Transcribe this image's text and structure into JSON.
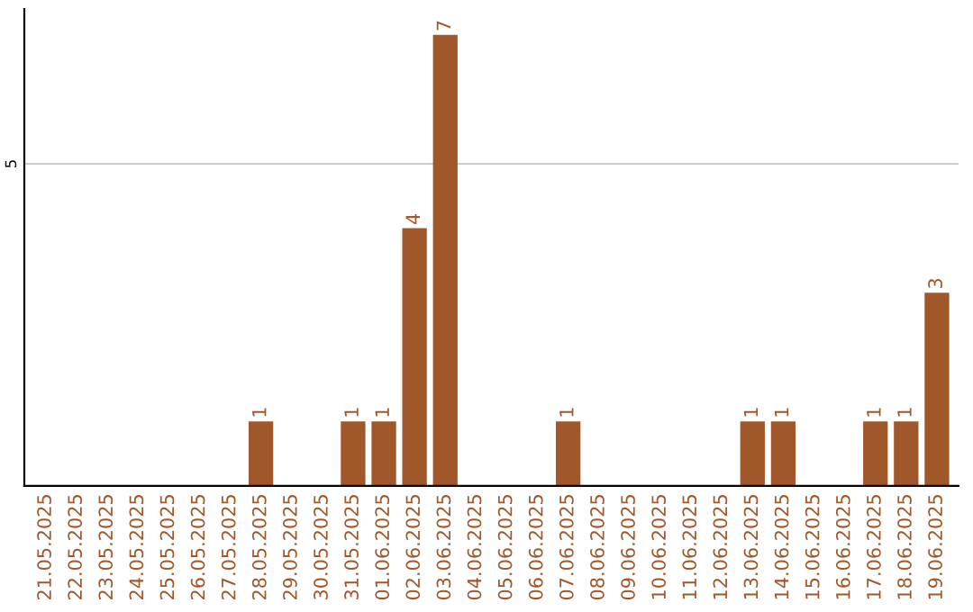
{
  "chart_data": {
    "type": "bar",
    "categories": [
      "21.05.2025",
      "22.05.2025",
      "23.05.2025",
      "24.05.2025",
      "25.05.2025",
      "26.05.2025",
      "27.05.2025",
      "28.05.2025",
      "29.05.2025",
      "30.05.2025",
      "31.05.2025",
      "01.06.2025",
      "02.06.2025",
      "03.06.2025",
      "04.06.2025",
      "05.06.2025",
      "06.06.2025",
      "07.06.2025",
      "08.06.2025",
      "09.06.2025",
      "10.06.2025",
      "11.06.2025",
      "12.06.2025",
      "13.06.2025",
      "14.06.2025",
      "15.06.2025",
      "16.06.2025",
      "17.06.2025",
      "18.06.2025",
      "19.06.2025"
    ],
    "values": [
      0,
      0,
      0,
      0,
      0,
      0,
      0,
      1,
      0,
      0,
      1,
      1,
      4,
      7,
      0,
      0,
      0,
      1,
      0,
      0,
      0,
      0,
      0,
      1,
      1,
      0,
      0,
      1,
      1,
      3
    ],
    "value_labels": [
      null,
      null,
      null,
      null,
      null,
      null,
      null,
      "1",
      null,
      null,
      "1",
      "1",
      "4",
      "7",
      null,
      null,
      null,
      "1",
      null,
      null,
      null,
      null,
      null,
      "1",
      "1",
      null,
      null,
      "1",
      "1",
      "3"
    ],
    "color": "#a0572a",
    "ylim": [
      0,
      7.4
    ],
    "yticks": [
      5
    ],
    "grid": "y",
    "legend": false
  }
}
